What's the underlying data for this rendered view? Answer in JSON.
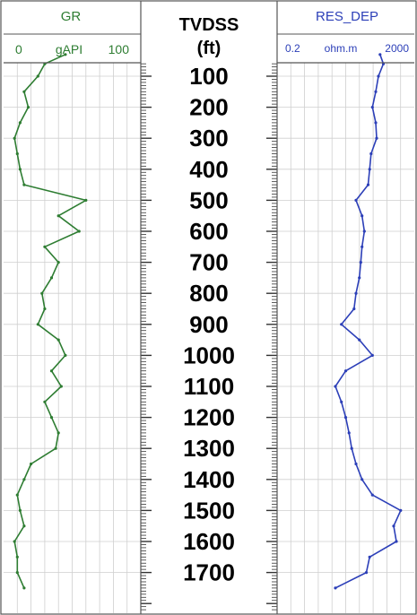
{
  "colors": {
    "gr_curve": "#2e7d32",
    "res_curve": "#2c3fb8",
    "border": "#555555",
    "grid": "#cfcfcf"
  },
  "chart_data": {
    "type": "line",
    "title": "",
    "y_axis": {
      "title": "TVDSS",
      "unit": "(ft)",
      "ticks": [
        100,
        200,
        300,
        400,
        500,
        600,
        700,
        800,
        900,
        1000,
        1100,
        1200,
        1300,
        1400,
        1500,
        1600,
        1700
      ],
      "range": [
        0,
        1800
      ],
      "inverted": true
    },
    "grid": true,
    "series": [
      {
        "name": "GR",
        "unit": "gAPI",
        "scale": "linear",
        "range": [
          0,
          100
        ],
        "range_labels": [
          "0",
          "100"
        ],
        "depth": [
          30,
          60,
          100,
          150,
          200,
          250,
          300,
          350,
          400,
          450,
          500,
          550,
          600,
          650,
          700,
          750,
          800,
          850,
          900,
          950,
          1000,
          1050,
          1100,
          1150,
          1200,
          1250,
          1300,
          1350,
          1400,
          1450,
          1500,
          1550,
          1600,
          1650,
          1700,
          1750
        ],
        "values": [
          45,
          30,
          25,
          15,
          18,
          12,
          8,
          10,
          12,
          15,
          60,
          40,
          55,
          30,
          40,
          35,
          28,
          30,
          25,
          40,
          45,
          35,
          42,
          30,
          35,
          40,
          38,
          20,
          15,
          10,
          12,
          15,
          8,
          10,
          10,
          15
        ]
      },
      {
        "name": "RES_DEP",
        "unit": "ohm.m",
        "scale": "log",
        "range": [
          0.2,
          2000
        ],
        "range_labels": [
          "0.2",
          "2000"
        ],
        "depth": [
          30,
          60,
          100,
          150,
          200,
          250,
          300,
          350,
          400,
          450,
          500,
          550,
          600,
          650,
          700,
          750,
          800,
          850,
          900,
          950,
          1000,
          1050,
          1100,
          1150,
          1200,
          1250,
          1300,
          1350,
          1400,
          1450,
          1500,
          1550,
          1600,
          1650,
          1700,
          1750
        ],
        "values": [
          200,
          250,
          180,
          150,
          120,
          150,
          160,
          110,
          100,
          90,
          40,
          60,
          70,
          60,
          55,
          50,
          40,
          35,
          15,
          50,
          120,
          20,
          10,
          15,
          20,
          25,
          30,
          40,
          60,
          120,
          800,
          500,
          600,
          100,
          80,
          10
        ]
      }
    ]
  }
}
